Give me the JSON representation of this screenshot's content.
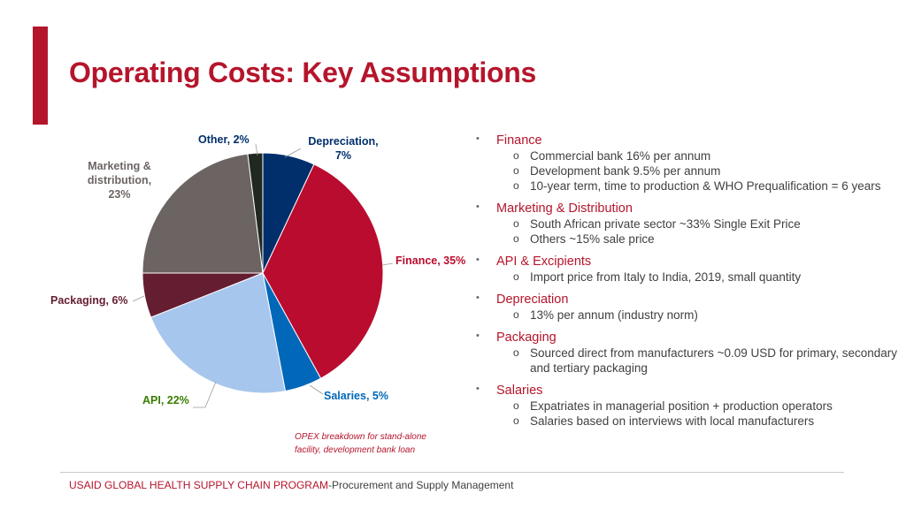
{
  "title": "Operating Costs: Key Assumptions",
  "chart_data": {
    "type": "pie",
    "slices": [
      {
        "label": "Depreciation, 7%",
        "value": 7,
        "color": "#002f6c"
      },
      {
        "label": "Finance, 35%",
        "value": 35,
        "color": "#ba0c2f"
      },
      {
        "label": "Salaries, 5%",
        "value": 5,
        "color": "#0067b9"
      },
      {
        "label": "API, 22%",
        "value": 22,
        "color": "#a7c6ed"
      },
      {
        "label": "Packaging, 6%",
        "value": 6,
        "color": "#651d32"
      },
      {
        "label": "Marketing & distribution, 23%",
        "value": 23,
        "color": "#6c6463"
      },
      {
        "label": "Other, 2%",
        "value": 2,
        "color": "#212721"
      }
    ],
    "label_colors": {
      "Depreciation": "#002f6c",
      "Finance": "#ba0c2f",
      "Salaries": "#0067b9",
      "API": "#3a7d00",
      "Packaging": "#651d32",
      "Marketing": "#6c6463",
      "Other": "#002f6c"
    }
  },
  "labels": {
    "other": "Other, 2%",
    "depreciation_1": "Depreciation,",
    "depreciation_2": "7%",
    "marketing_1": "Marketing &",
    "marketing_2": "distribution,",
    "marketing_3": "23%",
    "finance": "Finance, 35%",
    "packaging": "Packaging, 6%",
    "salaries": "Salaries, 5%",
    "api": "API, 22%"
  },
  "note": {
    "line1": "OPEX breakdown for stand-alone",
    "line2": "facility, development bank loan"
  },
  "bullets": [
    {
      "head": "Finance",
      "subs": [
        "Commercial bank 16% per annum",
        "Development bank 9.5% per annum",
        "10-year term, time to production & WHO Prequalification = 6 years"
      ]
    },
    {
      "head": "Marketing & Distribution",
      "subs": [
        "South African private sector ~33% Single Exit Price",
        "Others ~15% sale price"
      ]
    },
    {
      "head": "API & Excipients",
      "subs": [
        "Import price from Italy to India, 2019, small quantity"
      ]
    },
    {
      "head": "Depreciation",
      "subs": [
        "13% per annum (industry norm)"
      ]
    },
    {
      "head": "Packaging",
      "subs": [
        "Sourced direct from manufacturers ~0.09 USD for primary, secondary and tertiary packaging"
      ]
    },
    {
      "head": "Salaries",
      "subs": [
        "Expatriates in managerial position + production operators",
        "Salaries based on interviews with local manufacturers"
      ]
    }
  ],
  "footer": {
    "org": "USAID GLOBAL HEALTH SUPPLY CHAIN PROGRAM",
    "rest": "-Procurement and Supply Management"
  },
  "bullet_glyph": "•",
  "sub_glyph": "o"
}
